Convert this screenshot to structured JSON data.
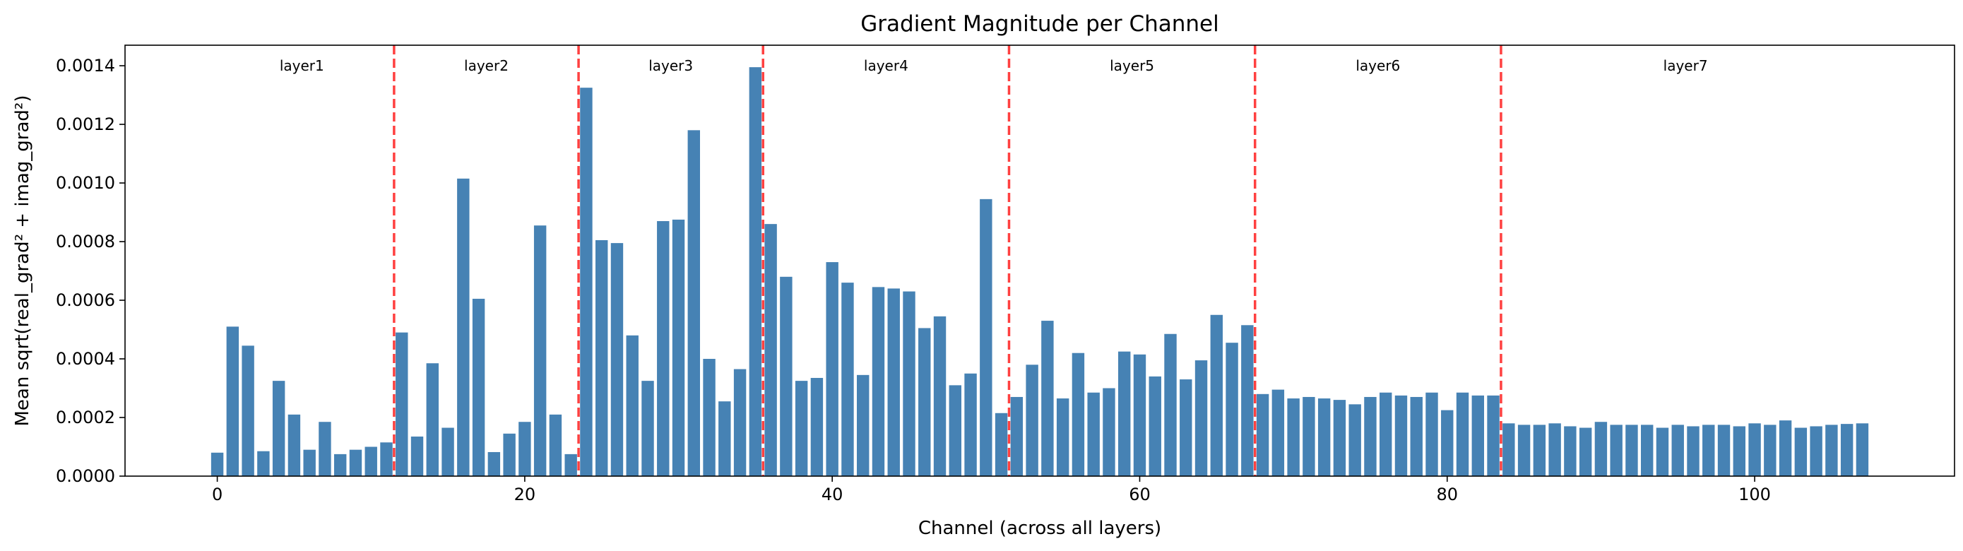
{
  "chart_data": {
    "type": "bar",
    "title": "Gradient Magnitude per Channel",
    "xlabel": "Channel (across all layers)",
    "ylabel": "Mean sqrt(real_grad² + imag_grad²)",
    "xlim": [
      -6,
      113
    ],
    "ylim": [
      0,
      0.00147
    ],
    "xticks": [
      0,
      20,
      40,
      60,
      80,
      100
    ],
    "xtick_labels": [
      "0",
      "20",
      "40",
      "60",
      "80",
      "100"
    ],
    "yticks": [
      0,
      0.0002,
      0.0004,
      0.0006,
      0.0008,
      0.001,
      0.0012,
      0.0014
    ],
    "ytick_labels": [
      "0.0000",
      "0.0002",
      "0.0004",
      "0.0006",
      "0.0008",
      "0.0010",
      "0.0012",
      "0.0014"
    ],
    "bar_color": "#4682b4",
    "boundary_color": "#ff0000",
    "grid": false,
    "layer_boundaries": [
      11.5,
      23.5,
      35.5,
      51.5,
      67.5,
      83.5
    ],
    "layers": [
      {
        "name": "layer1",
        "center": 5.5
      },
      {
        "name": "layer2",
        "center": 17.5
      },
      {
        "name": "layer3",
        "center": 29.5
      },
      {
        "name": "layer4",
        "center": 43.5
      },
      {
        "name": "layer5",
        "center": 59.5
      },
      {
        "name": "layer6",
        "center": 75.5
      },
      {
        "name": "layer7",
        "center": 95.5
      }
    ],
    "values": [
      8e-05,
      0.00051,
      0.000445,
      8.5e-05,
      0.000325,
      0.00021,
      9e-05,
      0.000185,
      7.5e-05,
      9e-05,
      0.0001,
      0.000115,
      0.00049,
      0.000135,
      0.000385,
      0.000165,
      0.001015,
      0.000605,
      8.2e-05,
      0.000145,
      0.000185,
      0.000855,
      0.00021,
      7.5e-05,
      0.001325,
      0.000805,
      0.000795,
      0.00048,
      0.000325,
      0.00087,
      0.000875,
      0.00118,
      0.0004,
      0.000255,
      0.000365,
      0.001395,
      0.00086,
      0.00068,
      0.000325,
      0.000335,
      0.00073,
      0.00066,
      0.000345,
      0.000645,
      0.00064,
      0.00063,
      0.000505,
      0.000545,
      0.00031,
      0.00035,
      0.000945,
      0.000215,
      0.00027,
      0.00038,
      0.00053,
      0.000265,
      0.00042,
      0.000285,
      0.0003,
      0.000425,
      0.000415,
      0.00034,
      0.000485,
      0.00033,
      0.000395,
      0.00055,
      0.000455,
      0.000515,
      0.00028,
      0.000295,
      0.000265,
      0.00027,
      0.000265,
      0.00026,
      0.000245,
      0.00027,
      0.000285,
      0.000275,
      0.00027,
      0.000285,
      0.000225,
      0.000285,
      0.000275,
      0.000275,
      0.00018,
      0.000175,
      0.000175,
      0.00018,
      0.00017,
      0.000165,
      0.000185,
      0.000175,
      0.000175,
      0.000175,
      0.000165,
      0.000175,
      0.00017,
      0.000175,
      0.000175,
      0.00017,
      0.00018,
      0.000175,
      0.00019,
      0.000165,
      0.00017,
      0.000175,
      0.000178,
      0.00018
    ]
  }
}
